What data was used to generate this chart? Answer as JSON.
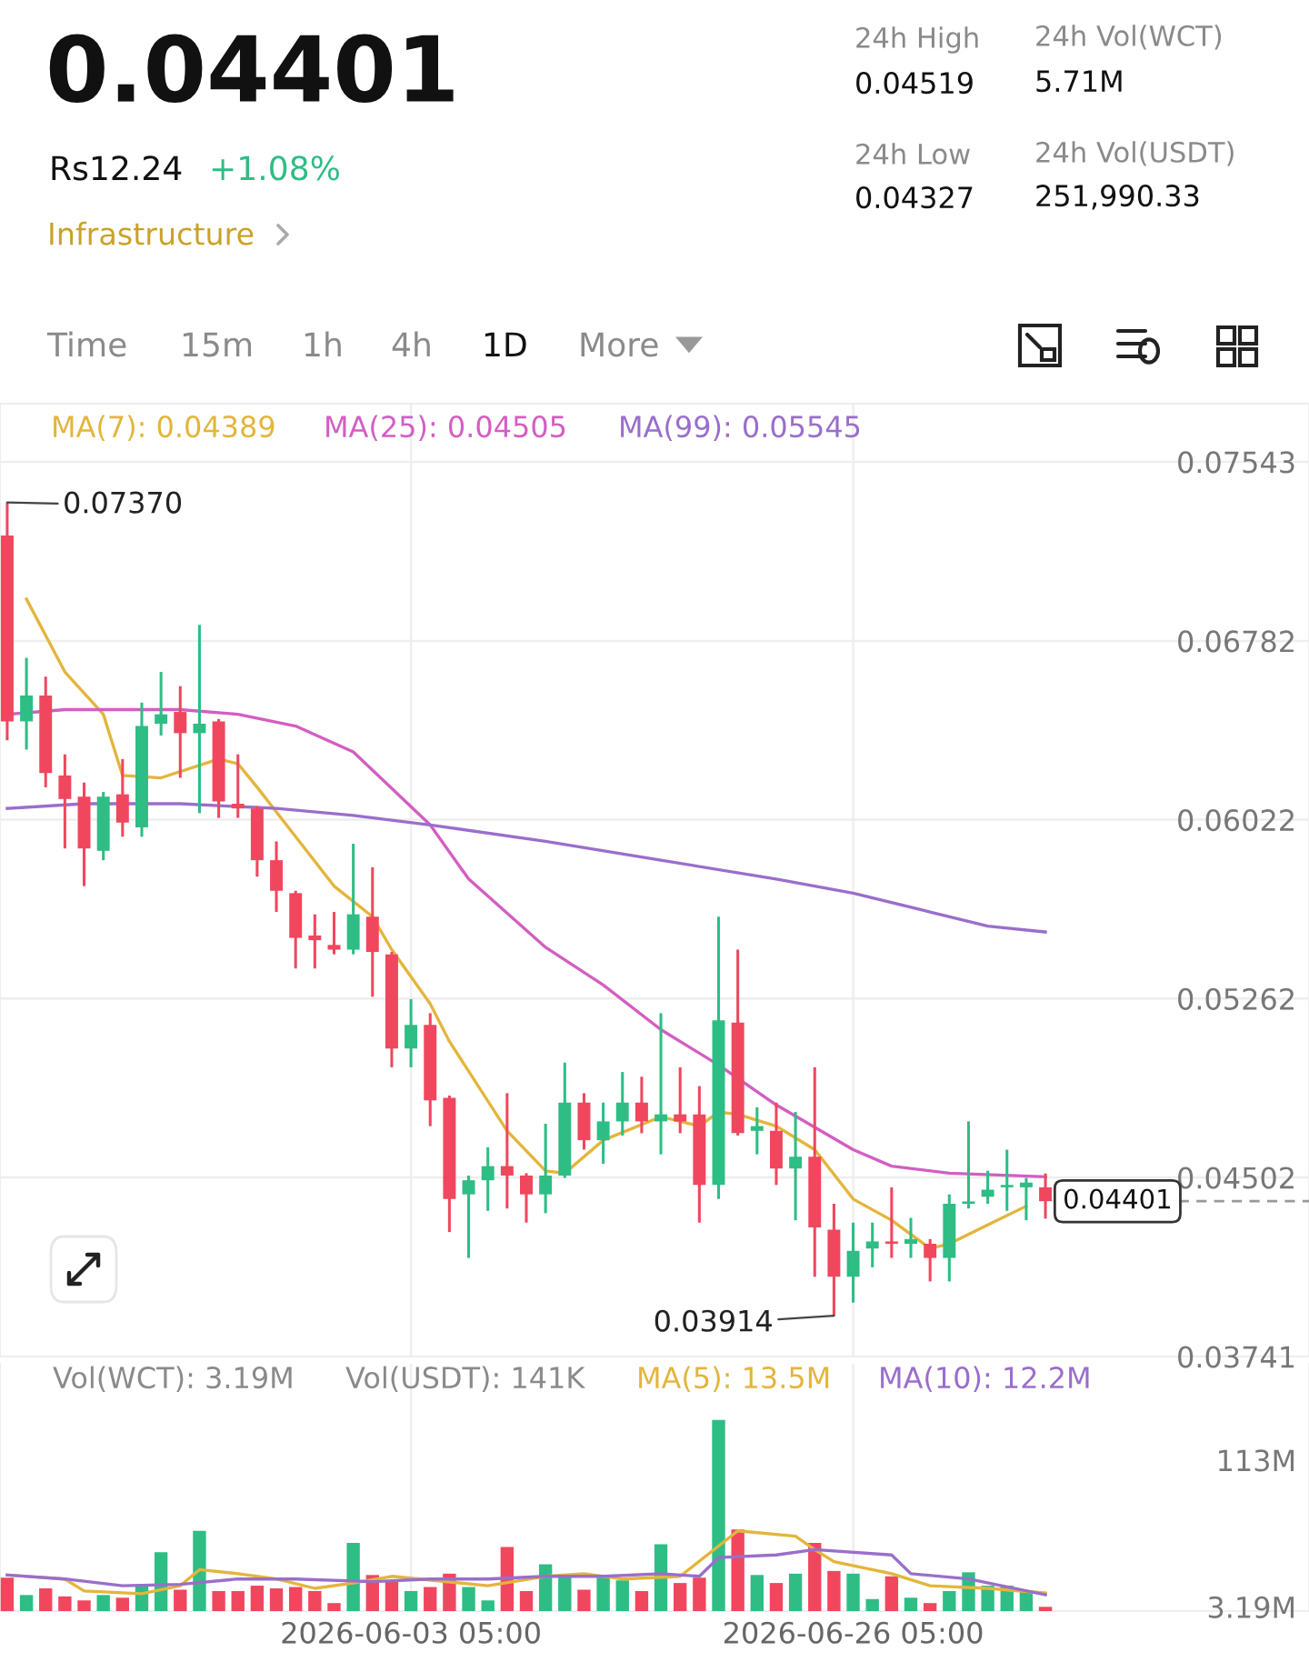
{
  "chart_data": [
    {
      "type": "other",
      "title": "0.04401",
      "annotations": [
        "Rs12.24",
        "+1.08%",
        "Infrastructure",
        "24h High",
        "0.04519",
        "24h Vol(WCT)",
        "5.71M",
        "24h Low",
        "0.04327",
        "24h Vol(USDT)",
        "251,990.33",
        "Time",
        "15m",
        "1h",
        "4h",
        "1D",
        "More"
      ]
    },
    {
      "type": "candlestick",
      "x": [
        "2026-05-13T05:00",
        "2026-05-14T05:00",
        "2026-05-15T05:00",
        "2026-05-16T05:00",
        "2026-05-17T05:00",
        "2026-05-18T05:00",
        "2026-05-19T05:00",
        "2026-05-20T05:00",
        "2026-05-21T05:00",
        "2026-05-22T05:00",
        "2026-05-23T05:00",
        "2026-05-24T05:00",
        "2026-05-25T05:00",
        "2026-05-26T05:00",
        "2026-05-27T05:00",
        "2026-05-28T05:00",
        "2026-05-29T05:00",
        "2026-05-30T05:00",
        "2026-05-31T05:00",
        "2026-06-01T05:00",
        "2026-06-02T05:00",
        "2026-06-03T05:00",
        "2026-06-04T05:00",
        "2026-06-05T05:00",
        "2026-06-06T05:00",
        "2026-06-07T05:00",
        "2026-06-08T05:00",
        "2026-06-09T05:00",
        "2026-06-10T05:00",
        "2026-06-11T05:00",
        "2026-06-12T05:00",
        "2026-06-13T05:00",
        "2026-06-14T05:00",
        "2026-06-15T05:00",
        "2026-06-16T05:00",
        "2026-06-17T05:00",
        "2026-06-18T05:00",
        "2026-06-19T05:00",
        "2026-06-20T05:00",
        "2026-06-21T05:00",
        "2026-06-22T05:00",
        "2026-06-23T05:00",
        "2026-06-24T05:00",
        "2026-06-25T05:00",
        "2026-06-26T05:00",
        "2026-06-27T05:00",
        "2026-06-28T05:00",
        "2026-06-29T05:00",
        "2026-06-30T05:00",
        "2026-07-01T05:00",
        "2026-07-02T05:00",
        "2026-07-03T05:00",
        "2026-07-04T05:00",
        "2026-07-05T05:00",
        "2026-07-06T05:00"
      ],
      "ohlc": [
        [
          0.0723,
          0.0737,
          0.0636,
          0.0644
        ],
        [
          0.0644,
          0.0671,
          0.0632,
          0.0655
        ],
        [
          0.0655,
          0.0663,
          0.0616,
          0.0622
        ],
        [
          0.0621,
          0.063,
          0.059,
          0.0611
        ],
        [
          0.0612,
          0.0618,
          0.0574,
          0.059
        ],
        [
          0.0589,
          0.0614,
          0.0585,
          0.0612
        ],
        [
          0.0613,
          0.0628,
          0.0595,
          0.0601
        ],
        [
          0.0599,
          0.0652,
          0.0595,
          0.0642
        ],
        [
          0.0643,
          0.0665,
          0.0638,
          0.0647
        ],
        [
          0.0648,
          0.0659,
          0.062,
          0.0639
        ],
        [
          0.0639,
          0.0685,
          0.0605,
          0.0643
        ],
        [
          0.0644,
          0.0645,
          0.0603,
          0.061
        ],
        [
          0.0609,
          0.063,
          0.0603,
          0.0607
        ],
        [
          0.0607,
          0.0608,
          0.0578,
          0.0585
        ],
        [
          0.0585,
          0.0593,
          0.0563,
          0.0572
        ],
        [
          0.0571,
          0.0572,
          0.0539,
          0.0552
        ],
        [
          0.0553,
          0.0562,
          0.0539,
          0.0551
        ],
        [
          0.0549,
          0.0563,
          0.0545,
          0.0547
        ],
        [
          0.0547,
          0.0592,
          0.0545,
          0.0562
        ],
        [
          0.0561,
          0.0582,
          0.0527,
          0.0546
        ],
        [
          0.0545,
          0.0546,
          0.0497,
          0.0505
        ],
        [
          0.0505,
          0.0526,
          0.0497,
          0.0515
        ],
        [
          0.0515,
          0.052,
          0.0472,
          0.0483
        ],
        [
          0.0484,
          0.0485,
          0.0427,
          0.0441
        ],
        [
          0.0443,
          0.0451,
          0.0416,
          0.0449
        ],
        [
          0.0449,
          0.0463,
          0.0436,
          0.0455
        ],
        [
          0.0455,
          0.0486,
          0.0437,
          0.0451
        ],
        [
          0.0451,
          0.0452,
          0.0431,
          0.0443
        ],
        [
          0.0443,
          0.0473,
          0.0435,
          0.0451
        ],
        [
          0.0451,
          0.0499,
          0.045,
          0.0482
        ],
        [
          0.0482,
          0.0486,
          0.0462,
          0.0466
        ],
        [
          0.0466,
          0.0482,
          0.0456,
          0.0474
        ],
        [
          0.0474,
          0.0495,
          0.0468,
          0.0482
        ],
        [
          0.0482,
          0.0493,
          0.0469,
          0.0474
        ],
        [
          0.0474,
          0.052,
          0.046,
          0.0477
        ],
        [
          0.0477,
          0.0497,
          0.0469,
          0.0474
        ],
        [
          0.0477,
          0.0489,
          0.0431,
          0.0447
        ],
        [
          0.0447,
          0.0561,
          0.0441,
          0.0517
        ],
        [
          0.0516,
          0.0547,
          0.0468,
          0.0469
        ],
        [
          0.047,
          0.048,
          0.046,
          0.0472
        ],
        [
          0.047,
          0.0482,
          0.0447,
          0.0454
        ],
        [
          0.0454,
          0.0478,
          0.0432,
          0.0459
        ],
        [
          0.0459,
          0.0497,
          0.0408,
          0.0429
        ],
        [
          0.0428,
          0.0439,
          0.03914,
          0.0408
        ],
        [
          0.0408,
          0.0431,
          0.0397,
          0.0419
        ],
        [
          0.042,
          0.0431,
          0.0412,
          0.0423
        ],
        [
          0.0423,
          0.0446,
          0.0416,
          0.0422
        ],
        [
          0.0422,
          0.0433,
          0.0416,
          0.0424
        ],
        [
          0.0422,
          0.0424,
          0.0406,
          0.0416
        ],
        [
          0.0416,
          0.0443,
          0.0406,
          0.0439
        ],
        [
          0.0439,
          0.0474,
          0.0437,
          0.044
        ],
        [
          0.0442,
          0.0453,
          0.0439,
          0.0445
        ],
        [
          0.0446,
          0.0462,
          0.0436,
          0.0447
        ],
        [
          0.0446,
          0.045,
          0.0432,
          0.0448
        ],
        [
          0.0446,
          0.04519,
          0.04327,
          0.04401
        ]
      ],
      "colors": [
        "#f0475e",
        "#2ebd85",
        "#f0475e",
        "#f0475e",
        "#f0475e",
        "#2ebd85",
        "#f0475e",
        "#2ebd85",
        "#2ebd85",
        "#f0475e",
        "#2ebd85",
        "#f0475e",
        "#f0475e",
        "#f0475e",
        "#f0475e",
        "#f0475e",
        "#f0475e",
        "#f0475e",
        "#2ebd85",
        "#f0475e",
        "#f0475e",
        "#2ebd85",
        "#f0475e",
        "#f0475e",
        "#2ebd85",
        "#2ebd85",
        "#f0475e",
        "#f0475e",
        "#2ebd85",
        "#2ebd85",
        "#f0475e",
        "#2ebd85",
        "#2ebd85",
        "#f0475e",
        "#2ebd85",
        "#f0475e",
        "#f0475e",
        "#2ebd85",
        "#f0475e",
        "#2ebd85",
        "#f0475e",
        "#2ebd85",
        "#f0475e",
        "#f0475e",
        "#2ebd85",
        "#2ebd85",
        "#f0475e",
        "#2ebd85",
        "#f0475e",
        "#2ebd85",
        "#2ebd85",
        "#2ebd85",
        "#2ebd85",
        "#2ebd85",
        "#f0475e"
      ],
      "series": [
        {
          "type": "line",
          "name": "MA(7): 0.04389",
          "color": "#e3b53c",
          "x": [
            "2026-05-14T05:00",
            "2026-05-16T05:00",
            "2026-05-18T05:00",
            "2026-05-19T05:00",
            "2026-05-21T05:00",
            "2026-05-24T05:00",
            "2026-05-25T05:00",
            "2026-05-26T05:00",
            "2026-05-28T05:00",
            "2026-05-30T05:00",
            "2026-06-01T05:00",
            "2026-06-02T05:00",
            "2026-06-04T05:00",
            "2026-06-05T05:00",
            "2026-06-08T05:00",
            "2026-06-10T05:00",
            "2026-06-11T05:00",
            "2026-06-13T05:00",
            "2026-06-16T05:00",
            "2026-06-18T05:00",
            "2026-06-19T05:00",
            "2026-06-20T05:00",
            "2026-06-22T05:00",
            "2026-06-24T05:00",
            "2026-06-26T05:00",
            "2026-06-28T05:00",
            "2026-06-30T05:00",
            "2026-07-01T05:00",
            "2026-07-03T05:00",
            "2026-07-05T05:00"
          ],
          "values": [
            0.0696,
            0.0665,
            0.0647,
            0.0621,
            0.062,
            0.0628,
            0.0626,
            0.0616,
            0.0595,
            0.0574,
            0.0561,
            0.0547,
            0.0524,
            0.0508,
            0.047,
            0.0453,
            0.0452,
            0.0466,
            0.0476,
            0.0472,
            0.0478,
            0.0477,
            0.0472,
            0.0462,
            0.0441,
            0.0432,
            0.042,
            0.0422,
            0.043,
            0.0438
          ]
        },
        {
          "type": "line",
          "name": "MA(25): 0.04505",
          "color": "#d35ec3",
          "x": [
            "2026-05-13T05:00",
            "2026-05-16T05:00",
            "2026-05-19T05:00",
            "2026-05-22T05:00",
            "2026-05-25T05:00",
            "2026-05-28T05:00",
            "2026-05-31T05:00",
            "2026-06-04T05:00",
            "2026-06-06T05:00",
            "2026-06-10T05:00",
            "2026-06-13T05:00",
            "2026-06-16T05:00",
            "2026-06-19T05:00",
            "2026-06-22T05:00",
            "2026-06-26T05:00",
            "2026-06-28T05:00",
            "2026-07-01T05:00",
            "2026-07-06T05:00"
          ],
          "values": [
            0.0647,
            0.0649,
            0.0649,
            0.0649,
            0.0647,
            0.0642,
            0.0631,
            0.06,
            0.0577,
            0.0548,
            0.0532,
            0.0513,
            0.0498,
            0.0481,
            0.0462,
            0.0455,
            0.0452,
            0.04505
          ]
        },
        {
          "type": "line",
          "name": "MA(99): 0.05545",
          "color": "#9a6ecb",
          "x": [
            "2026-05-13T05:00",
            "2026-05-17T05:00",
            "2026-05-22T05:00",
            "2026-05-27T05:00",
            "2026-05-31T05:00",
            "2026-06-04T05:00",
            "2026-06-10T05:00",
            "2026-06-16T05:00",
            "2026-06-22T05:00",
            "2026-06-26T05:00",
            "2026-06-30T05:00",
            "2026-07-03T05:00",
            "2026-07-06T05:00"
          ],
          "values": [
            0.0607,
            0.0609,
            0.0609,
            0.0607,
            0.0604,
            0.06,
            0.0593,
            0.0585,
            0.0577,
            0.0571,
            0.0563,
            0.0557,
            0.05545
          ]
        }
      ],
      "xlim": [
        "2026-05-12T20:00",
        "2026-07-19T22:00"
      ],
      "xticks": [
        {
          "value": "2026-06-03T05:00",
          "label": null
        },
        {
          "value": "2026-06-26T05:00",
          "label": null
        }
      ],
      "ylim": [
        0.03741,
        0.0779
      ],
      "yticks": [
        0.07543,
        0.06782,
        0.06022,
        0.05262,
        0.04502,
        0.03741
      ],
      "tick_labels": "y",
      "grid": true,
      "annotations": [
        {
          "text": "0.07370",
          "x": "2026-05-13T05:00",
          "y": 0.0737
        },
        {
          "text": "0.03914",
          "x": "2026-06-25T05:00",
          "y": 0.03914
        }
      ],
      "ref_lines": [
        {
          "axis": "y",
          "value": 0.04401,
          "label": "0.04401",
          "line_style": "dashed",
          "color": "#999999"
        }
      ]
    },
    {
      "type": "bar",
      "x": [
        "2026-05-13T05:00",
        "2026-05-14T05:00",
        "2026-05-15T05:00",
        "2026-05-16T05:00",
        "2026-05-17T05:00",
        "2026-05-18T05:00",
        "2026-05-19T05:00",
        "2026-05-20T05:00",
        "2026-05-21T05:00",
        "2026-05-22T05:00",
        "2026-05-23T05:00",
        "2026-05-24T05:00",
        "2026-05-25T05:00",
        "2026-05-26T05:00",
        "2026-05-27T05:00",
        "2026-05-28T05:00",
        "2026-05-29T05:00",
        "2026-05-30T05:00",
        "2026-05-31T05:00",
        "2026-06-01T05:00",
        "2026-06-02T05:00",
        "2026-06-03T05:00",
        "2026-06-04T05:00",
        "2026-06-05T05:00",
        "2026-06-06T05:00",
        "2026-06-07T05:00",
        "2026-06-08T05:00",
        "2026-06-09T05:00",
        "2026-06-10T05:00",
        "2026-06-11T05:00",
        "2026-06-12T05:00",
        "2026-06-13T05:00",
        "2026-06-14T05:00",
        "2026-06-15T05:00",
        "2026-06-16T05:00",
        "2026-06-17T05:00",
        "2026-06-18T05:00",
        "2026-06-19T05:00",
        "2026-06-20T05:00",
        "2026-06-21T05:00",
        "2026-06-22T05:00",
        "2026-06-23T05:00",
        "2026-06-24T05:00",
        "2026-06-25T05:00",
        "2026-06-26T05:00",
        "2026-06-27T05:00",
        "2026-06-28T05:00",
        "2026-06-29T05:00",
        "2026-06-30T05:00",
        "2026-07-01T05:00",
        "2026-07-02T05:00",
        "2026-07-03T05:00",
        "2026-07-04T05:00",
        "2026-07-05T05:00",
        "2026-07-06T05:00"
      ],
      "series": [
        {
          "type": "bar",
          "values": [
            25,
            12,
            17,
            11,
            8,
            12,
            10,
            20,
            44,
            16,
            60,
            15,
            15,
            19,
            17,
            18,
            15,
            6,
            51,
            27,
            22,
            15,
            18,
            28,
            18,
            8,
            48,
            15,
            35,
            26,
            16,
            25,
            23,
            15,
            50,
            21,
            25,
            143,
            61,
            27,
            21,
            28,
            51,
            30,
            28,
            9,
            26,
            10,
            6,
            15,
            29,
            19,
            19,
            15,
            3.19
          ],
          "colors": [
            "#f0475e",
            "#2ebd85",
            "#f0475e",
            "#f0475e",
            "#f0475e",
            "#2ebd85",
            "#f0475e",
            "#2ebd85",
            "#2ebd85",
            "#f0475e",
            "#2ebd85",
            "#f0475e",
            "#f0475e",
            "#f0475e",
            "#f0475e",
            "#f0475e",
            "#f0475e",
            "#f0475e",
            "#2ebd85",
            "#f0475e",
            "#f0475e",
            "#2ebd85",
            "#f0475e",
            "#f0475e",
            "#2ebd85",
            "#2ebd85",
            "#f0475e",
            "#f0475e",
            "#2ebd85",
            "#2ebd85",
            "#f0475e",
            "#2ebd85",
            "#2ebd85",
            "#f0475e",
            "#2ebd85",
            "#f0475e",
            "#f0475e",
            "#2ebd85",
            "#f0475e",
            "#2ebd85",
            "#f0475e",
            "#2ebd85",
            "#f0475e",
            "#f0475e",
            "#2ebd85",
            "#2ebd85",
            "#f0475e",
            "#2ebd85",
            "#f0475e",
            "#2ebd85",
            "#2ebd85",
            "#2ebd85",
            "#2ebd85",
            "#2ebd85",
            "#f0475e"
          ]
        },
        {
          "type": "line",
          "name": "MA(5): 13.5M",
          "color": "#e3b53c",
          "x": [
            "2026-05-13T05:00",
            "2026-05-16T05:00",
            "2026-05-17T05:00",
            "2026-05-20T05:00",
            "2026-05-22T05:00",
            "2026-05-23T05:00",
            "2026-05-25T05:00",
            "2026-05-27T05:00",
            "2026-05-29T05:00",
            "2026-05-31T05:00",
            "2026-06-02T05:00",
            "2026-06-07T05:00",
            "2026-06-10T05:00",
            "2026-06-12T05:00",
            "2026-06-14T05:00",
            "2026-06-17T05:00",
            "2026-06-20T05:00",
            "2026-06-23T05:00",
            "2026-06-24T05:00",
            "2026-06-25T05:00",
            "2026-06-28T05:00",
            "2026-06-30T05:00",
            "2026-07-03T05:00",
            "2026-07-06T05:00"
          ],
          "values": [
            27,
            24,
            15,
            13,
            19,
            31,
            28,
            24,
            17,
            21,
            26,
            19,
            26,
            28,
            24,
            26,
            60,
            56,
            46,
            37,
            28,
            19,
            17,
            13.5
          ]
        },
        {
          "type": "line",
          "name": "MA(10): 12.2M",
          "color": "#9a6ecb",
          "x": [
            "2026-05-13T05:00",
            "2026-05-16T05:00",
            "2026-05-19T05:00",
            "2026-05-22T05:00",
            "2026-05-25T05:00",
            "2026-05-28T05:00",
            "2026-06-01T05:00",
            "2026-06-04T05:00",
            "2026-06-07T05:00",
            "2026-06-10T05:00",
            "2026-06-13T05:00",
            "2026-06-16T05:00",
            "2026-06-18T05:00",
            "2026-06-19T05:00",
            "2026-06-22T05:00",
            "2026-06-24T05:00",
            "2026-06-28T05:00",
            "2026-06-29T05:00",
            "2026-07-02T05:00",
            "2026-07-06T05:00"
          ],
          "values": [
            27,
            24,
            19,
            20,
            24,
            24,
            22,
            24,
            24,
            26,
            26,
            28,
            26,
            40,
            42,
            46,
            42,
            28,
            24,
            12.2
          ]
        }
      ],
      "xlim": [
        "2026-05-12T20:00",
        "2026-07-19T22:00"
      ],
      "xticks": [
        {
          "value": "2026-06-03T05:00",
          "label": "2026-06-03 05:00"
        },
        {
          "value": "2026-06-26T05:00",
          "label": "2026-06-26 05:00"
        }
      ],
      "ylim": [
        0,
        185
      ],
      "yticks": [
        {
          "value": 113,
          "label": "113M"
        },
        {
          "value": 3.19,
          "label": "3.19M"
        }
      ],
      "grid": "x",
      "annotations": [
        "Vol(WCT): 3.19M",
        "Vol(USDT): 141K"
      ]
    }
  ]
}
